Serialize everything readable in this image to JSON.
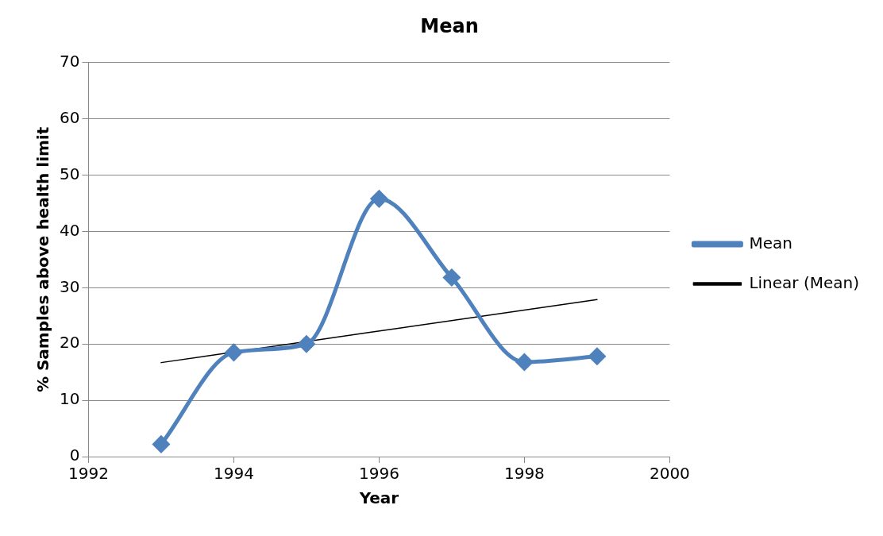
{
  "chart_data": {
    "type": "line",
    "title": "Mean",
    "xlabel": "Year",
    "ylabel": "% Samples above health limit",
    "x": [
      1993,
      1994,
      1995,
      1996,
      1997,
      1998,
      1999
    ],
    "series": [
      {
        "name": "Mean",
        "color": "#4f81bd",
        "values": [
          2.2,
          18.5,
          20,
          45.8,
          31.8,
          16.8,
          17.8
        ],
        "marker": "diamond",
        "line_style": "solid"
      },
      {
        "name": "Linear (Mean)",
        "type": "line",
        "color": "#000000",
        "x": [
          1993,
          1999
        ],
        "values": [
          16.7,
          27.9
        ],
        "marker": "none",
        "line_style": "solid"
      }
    ],
    "xlim": [
      1992,
      2000
    ],
    "xticks": [
      1992,
      1994,
      1996,
      1998,
      2000
    ],
    "ylim": [
      0,
      70
    ],
    "yticks": [
      0,
      10,
      20,
      30,
      40,
      50,
      60,
      70
    ],
    "grid": "y",
    "legend": "right"
  }
}
